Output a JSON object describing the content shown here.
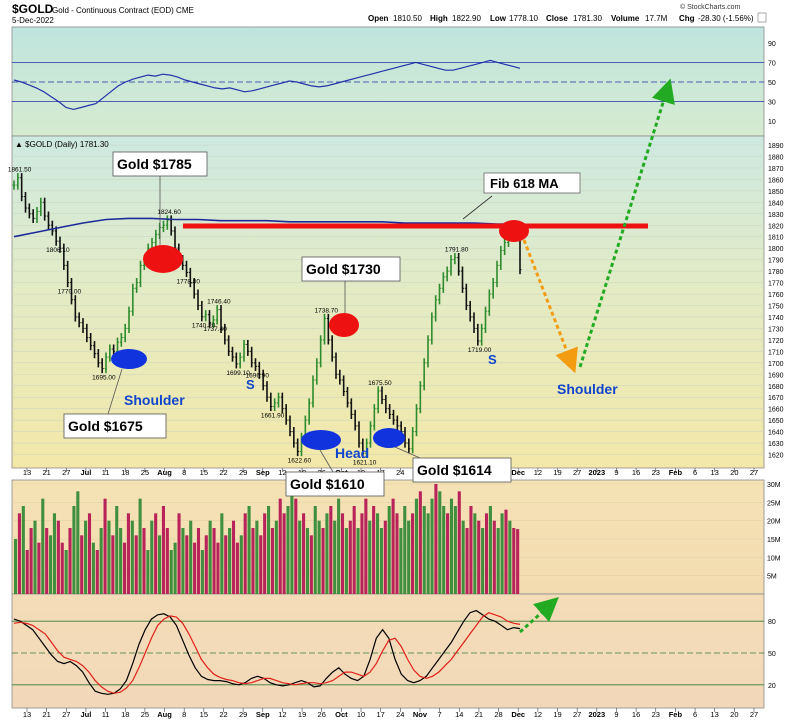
{
  "header": {
    "symbol": "$GOLD",
    "subtitle": "Gold - Continuous Contract (EOD)  CME",
    "date": "5-Dec-2022",
    "open_label": "Open",
    "open": "1810.50",
    "high_label": "High",
    "high": "1822.90",
    "low_label": "Low",
    "low": "1778.10",
    "close_label": "Close",
    "close": "1781.30",
    "volume_label": "Volume",
    "volume": "17.7M",
    "chg_label": "Chg",
    "chg": "-28.30 (-1.56%)",
    "brand": "© StockCharts.com"
  },
  "price_legend": "▲ $GOLD (Daily) 1781.30",
  "colors": {
    "up": "#2e8b2e",
    "down": "#111111",
    "volume_up": "#3f8f3f",
    "volume_down": "#b8245a",
    "ma": "#1c2a9a",
    "rsi": "#2233aa",
    "stoch_k": "#000000",
    "stoch_d": "#e0201a",
    "resistance": "#ee1111",
    "marker_red": "#ee1111",
    "marker_blue": "#1133dd",
    "label_blue": "#1144cc",
    "arrow_orange": "#f39c12",
    "arrow_green": "#22aa22"
  },
  "annotations": {
    "gold_1785": "Gold $1785",
    "gold_1730": "Gold $1730",
    "gold_1675": "Gold $1675",
    "gold_1610": "Gold $1610",
    "gold_1614": "Gold $1614",
    "fib": "Fib 618 MA",
    "shoulder_left": "Shoulder",
    "shoulder_right": "Shoulder",
    "head": "Head",
    "s_left": "S",
    "s_right": "S"
  },
  "x_axis": {
    "labels": [
      "13",
      "21",
      "27",
      "Jul",
      "11",
      "18",
      "25",
      "Aug",
      "8",
      "15",
      "22",
      "29",
      "Sep",
      "12",
      "19",
      "26",
      "Oct",
      "10",
      "17",
      "24",
      "Nov",
      "7",
      "14",
      "21",
      "28",
      "Dec",
      "12",
      "19",
      "27",
      "2023",
      "9",
      "16",
      "23",
      "Feb",
      "6",
      "13",
      "20",
      "27"
    ],
    "bold": [
      "Jul",
      "Aug",
      "Sep",
      "Oct",
      "Nov",
      "Dec",
      "2023",
      "Feb"
    ]
  },
  "chart_data": [
    {
      "type": "line",
      "name": "RSI panel",
      "ylim": [
        0,
        100
      ],
      "y_ticks": [
        10,
        30,
        50,
        70,
        90
      ],
      "guide_levels": [
        30,
        50,
        70
      ],
      "series": [
        {
          "values": [
            52,
            50,
            47,
            44,
            40,
            35,
            30,
            24,
            22,
            24,
            26,
            28,
            34,
            40,
            46,
            50,
            53,
            55,
            57,
            56,
            58,
            57,
            55,
            52,
            50,
            48,
            46,
            44,
            43,
            44,
            42,
            40,
            41,
            43,
            45,
            47,
            49,
            51,
            50,
            48,
            46,
            45,
            46,
            48,
            50,
            52,
            54,
            56,
            58,
            60,
            62,
            64,
            66,
            68,
            70,
            68,
            66,
            64,
            62,
            62,
            64,
            66,
            68,
            70,
            72,
            70,
            68,
            66,
            64
          ]
        }
      ]
    },
    {
      "type": "line",
      "name": "price",
      "title": "$GOLD (Daily) 1781.30",
      "ylim": [
        1610,
        1890
      ],
      "y_ticks": [
        1620,
        1630,
        1640,
        1650,
        1660,
        1670,
        1680,
        1690,
        1700,
        1710,
        1720,
        1730,
        1740,
        1750,
        1760,
        1770,
        1780,
        1790,
        1800,
        1810,
        1820,
        1830,
        1840,
        1850,
        1860,
        1870,
        1880,
        1890
      ],
      "x_labels": [
        "13",
        "21",
        "27",
        "Jul",
        "11",
        "18",
        "25",
        "Aug",
        "8",
        "15",
        "22",
        "29",
        "Sep",
        "12",
        "19",
        "26",
        "Oct",
        "10",
        "17",
        "24",
        "Nov",
        "7",
        "14",
        "21",
        "28",
        "Dec",
        "12",
        "19",
        "27",
        "2023",
        "9",
        "16",
        "23",
        "Feb",
        "6",
        "13",
        "20",
        "27"
      ],
      "series": [
        {
          "name": "$GOLD",
          "values": [
            1855,
            1861.5,
            1845,
            1835,
            1830,
            1826,
            1832,
            1840,
            1828,
            1820,
            1815,
            1806.1,
            1800,
            1785,
            1770,
            1755,
            1740,
            1735,
            1730,
            1722,
            1715,
            1708,
            1700,
            1695,
            1705,
            1712,
            1710,
            1718,
            1722,
            1730,
            1745,
            1765,
            1770,
            1785,
            1790,
            1800,
            1805,
            1812,
            1818,
            1820,
            1824.6,
            1815,
            1800,
            1790,
            1785,
            1778.8,
            1770,
            1760,
            1750,
            1740.2,
            1742,
            1735,
            1737.4,
            1746.4,
            1730,
            1720,
            1710,
            1705,
            1699.1,
            1705,
            1716,
            1710,
            1700,
            1696.9,
            1690,
            1680,
            1670,
            1661.9,
            1665,
            1670,
            1660,
            1650,
            1640,
            1630,
            1622.6,
            1635,
            1650,
            1665,
            1685,
            1700,
            1720,
            1738.7,
            1720,
            1705,
            1690,
            1685,
            1675,
            1665,
            1655,
            1645,
            1630,
            1621.1,
            1630,
            1645,
            1660,
            1675.5,
            1668,
            1660,
            1655,
            1650,
            1645,
            1640,
            1630,
            1625,
            1640,
            1660,
            1680,
            1700,
            1720,
            1740,
            1755,
            1765,
            1775,
            1780,
            1790,
            1791.8,
            1780,
            1765,
            1750,
            1740,
            1730,
            1719,
            1730,
            1745,
            1760,
            1770,
            1785,
            1798,
            1805,
            1812,
            1818,
            1810.5,
            1781.3
          ]
        },
        {
          "name": "Fib 618 MA",
          "values": [
            1810,
            1814,
            1818,
            1822,
            1825,
            1826,
            1826,
            1825,
            1825,
            1824,
            1824,
            1824,
            1823,
            1823,
            1823,
            1823,
            1823,
            1822,
            1822,
            1822,
            1822,
            1821,
            1821
          ]
        }
      ],
      "levels": [
        {
          "name": "resistance",
          "value": 1820
        }
      ],
      "markers": [
        {
          "label": "1861.50",
          "value": 1861.5
        },
        {
          "label": "1806.10",
          "value": 1806.1
        },
        {
          "label": "1824.60",
          "value": 1824.6
        },
        {
          "label": "1770.00",
          "value": 1770.0
        },
        {
          "label": "1778.80",
          "value": 1778.8
        },
        {
          "label": "1740.20",
          "value": 1740.2
        },
        {
          "label": "1746.40",
          "value": 1746.4
        },
        {
          "label": "1737.40",
          "value": 1737.4
        },
        {
          "label": "1699.10",
          "value": 1699.1
        },
        {
          "label": "1696.90",
          "value": 1696.9
        },
        {
          "label": "1661.90",
          "value": 1661.9
        },
        {
          "label": "1738.70",
          "value": 1738.7
        },
        {
          "label": "1675.50",
          "value": 1675.5
        },
        {
          "label": "1622.60",
          "value": 1622.6
        },
        {
          "label": "1621.10",
          "value": 1621.1
        },
        {
          "label": "1695.00",
          "value": 1695.0
        },
        {
          "label": "1791.80",
          "value": 1791.8
        },
        {
          "label": "1719.00",
          "value": 1719.0
        }
      ]
    },
    {
      "type": "bar",
      "name": "volume",
      "ylim": [
        0,
        30
      ],
      "unit": "M",
      "y_ticks": [
        "5M",
        "10M",
        "15M",
        "20M",
        "25M",
        "30M"
      ],
      "values": [
        15,
        22,
        24,
        12,
        18,
        20,
        14,
        26,
        18,
        16,
        22,
        20,
        14,
        12,
        18,
        24,
        28,
        16,
        20,
        22,
        14,
        12,
        18,
        26,
        20,
        16,
        24,
        18,
        14,
        22,
        20,
        16,
        26,
        18,
        12,
        20,
        22,
        16,
        24,
        18,
        12,
        14,
        22,
        18,
        16,
        20,
        14,
        18,
        12,
        16,
        20,
        18,
        14,
        22,
        16,
        18,
        20,
        14,
        16,
        22,
        24,
        18,
        20,
        16,
        22,
        24,
        18,
        20,
        26,
        22,
        24,
        28,
        26,
        20,
        22,
        18,
        16,
        24,
        20,
        18,
        22,
        24,
        20,
        26,
        22,
        18,
        20,
        24,
        18,
        22,
        26,
        20,
        24,
        22,
        18,
        20,
        24,
        26,
        22,
        18,
        24,
        20,
        22,
        26,
        28,
        24,
        22,
        26,
        30,
        28,
        24,
        22,
        26,
        24,
        28,
        20,
        18,
        24,
        22,
        20,
        18,
        22,
        24,
        20,
        18,
        22,
        23,
        20,
        18,
        17.7
      ],
      "up": [
        1,
        0,
        1,
        0,
        0,
        1,
        0,
        1,
        0,
        1,
        1,
        0,
        0,
        1,
        0,
        1,
        1,
        0,
        1,
        0,
        1,
        0,
        1,
        0,
        1,
        0,
        1,
        1,
        0,
        0,
        1,
        0,
        1,
        0,
        1,
        1,
        0,
        1,
        0,
        0,
        1,
        1,
        0,
        1,
        0,
        1,
        0,
        0,
        1,
        0,
        1,
        0,
        0,
        1,
        0,
        1,
        0,
        0,
        1,
        0,
        1,
        0,
        1,
        0,
        0,
        1,
        0,
        1,
        0,
        0,
        1,
        1,
        0,
        1,
        0,
        1,
        0,
        1,
        1,
        0,
        1,
        0,
        1,
        1,
        0,
        1,
        0,
        0,
        1,
        0,
        0,
        1,
        0,
        1,
        1,
        0,
        1,
        0,
        0,
        1,
        1,
        1,
        0,
        1,
        0,
        1,
        1,
        1,
        0,
        1,
        1,
        0,
        1,
        1,
        0,
        1,
        0,
        0,
        1,
        0,
        1,
        0,
        1,
        0,
        1,
        1,
        0,
        1,
        0,
        0
      ]
    },
    {
      "type": "line",
      "name": "stochastic",
      "ylim": [
        0,
        100
      ],
      "y_ticks": [
        20,
        50,
        80
      ],
      "guide_levels": [
        20,
        50,
        80
      ],
      "series": [
        {
          "name": "%K",
          "values": [
            82,
            80,
            76,
            72,
            64,
            56,
            48,
            42,
            40,
            42,
            38,
            32,
            22,
            14,
            12,
            11,
            12,
            16,
            24,
            40,
            58,
            72,
            82,
            86,
            87,
            84,
            76,
            62,
            48,
            36,
            28,
            25,
            24,
            24,
            23,
            21,
            20,
            22,
            26,
            28,
            26,
            22,
            20,
            19,
            20,
            22,
            24,
            22,
            18,
            19,
            26,
            32,
            36,
            30,
            26,
            24,
            28,
            44,
            64,
            72,
            64,
            44,
            30,
            24,
            22,
            24,
            28,
            36,
            44,
            52,
            60,
            70,
            80,
            88,
            90,
            86,
            82,
            80,
            76,
            72,
            74,
            73
          ]
        },
        {
          "name": "%D",
          "values": [
            78,
            79,
            78,
            76,
            72,
            68,
            60,
            52,
            46,
            44,
            42,
            38,
            32,
            24,
            18,
            14,
            12,
            13,
            17,
            24,
            36,
            50,
            64,
            76,
            82,
            85,
            84,
            78,
            68,
            56,
            44,
            36,
            30,
            27,
            25,
            24,
            22,
            21,
            22,
            24,
            26,
            26,
            24,
            22,
            21,
            20,
            21,
            22,
            22,
            21,
            22,
            24,
            28,
            32,
            32,
            30,
            28,
            32,
            40,
            52,
            62,
            64,
            56,
            44,
            34,
            28,
            26,
            28,
            32,
            38,
            44,
            52,
            60,
            68,
            76,
            84,
            88,
            86,
            84,
            80,
            78,
            77
          ]
        }
      ]
    }
  ]
}
